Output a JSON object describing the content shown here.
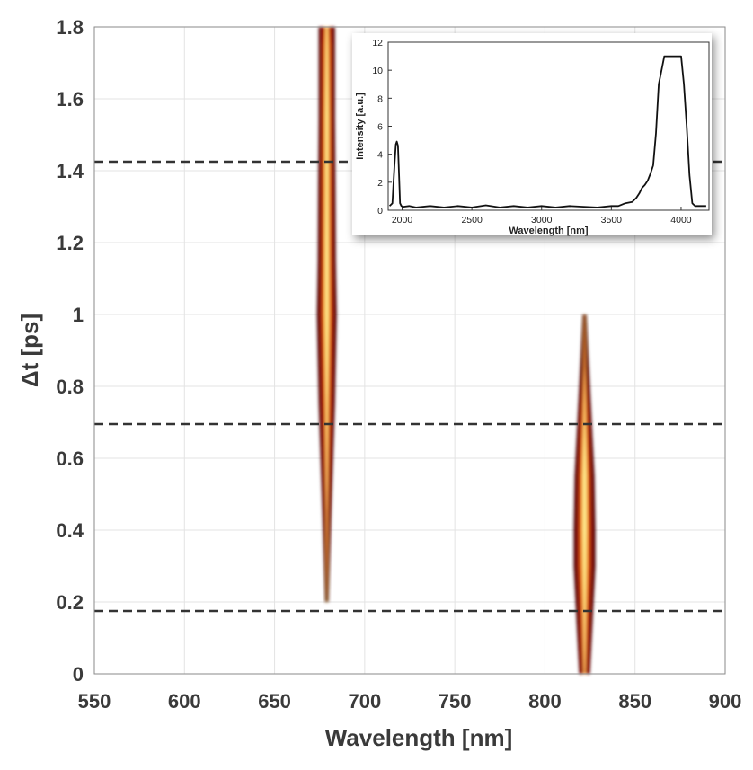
{
  "chart_data": [
    {
      "type": "heatmap",
      "xlabel": "Wavelength [nm]",
      "ylabel": "Δt  [ps]",
      "xlim": [
        550,
        900
      ],
      "ylim": [
        0,
        1.8
      ],
      "x_ticks": [
        "550",
        "600",
        "650",
        "700",
        "750",
        "800",
        "850",
        "900"
      ],
      "y_ticks": [
        "0",
        "0.2",
        "0.4",
        "0.6",
        "0.8",
        "1",
        "1.2",
        "1.4",
        "1.6",
        "1.8"
      ],
      "grid": true,
      "colormap": [
        "#3a0000",
        "#8b0a0a",
        "#d2380e",
        "#f59a1a",
        "#fff29a"
      ],
      "reference_lines": [
        1.425,
        0.695,
        0.175
      ],
      "reference_line_color": "#333333",
      "traces": [
        {
          "center_wavelength": 679,
          "dt_range": [
            0.2,
            1.8
          ],
          "profile": [
            {
              "dt": 0.2,
              "width": 1.0,
              "intensity": 0.05
            },
            {
              "dt": 0.45,
              "width": 2.5,
              "intensity": 0.25
            },
            {
              "dt": 0.75,
              "width": 4.5,
              "intensity": 0.5
            },
            {
              "dt": 1.0,
              "width": 5.5,
              "intensity": 0.85
            },
            {
              "dt": 1.15,
              "width": 5.0,
              "intensity": 1.0
            },
            {
              "dt": 1.35,
              "width": 4.8,
              "intensity": 0.8
            },
            {
              "dt": 1.55,
              "width": 4.5,
              "intensity": 1.0
            },
            {
              "dt": 1.75,
              "width": 4.5,
              "intensity": 0.55
            },
            {
              "dt": 1.8,
              "width": 4.5,
              "intensity": 0.4
            }
          ]
        },
        {
          "center_wavelength": 822,
          "dt_range": [
            0.0,
            1.0
          ],
          "profile": [
            {
              "dt": 0.0,
              "width": 3.0,
              "intensity": 0.3
            },
            {
              "dt": 0.15,
              "width": 4.5,
              "intensity": 0.5
            },
            {
              "dt": 0.3,
              "width": 6.0,
              "intensity": 0.75
            },
            {
              "dt": 0.4,
              "width": 6.0,
              "intensity": 1.0
            },
            {
              "dt": 0.55,
              "width": 5.5,
              "intensity": 1.0
            },
            {
              "dt": 0.7,
              "width": 4.0,
              "intensity": 0.5
            },
            {
              "dt": 0.85,
              "width": 2.5,
              "intensity": 0.2
            },
            {
              "dt": 1.0,
              "width": 1.0,
              "intensity": 0.05
            }
          ]
        }
      ]
    },
    {
      "type": "line",
      "xlabel": "Wavelength [nm]",
      "ylabel": "Intensity [a.u.]",
      "xlim": [
        1900,
        4200
      ],
      "ylim": [
        0,
        12
      ],
      "x_ticks": [
        "2000",
        "2500",
        "3000",
        "3500",
        "4000"
      ],
      "y_ticks": [
        "0",
        "2",
        "4",
        "6",
        "8",
        "10",
        "12"
      ],
      "series": [
        {
          "x": [
            1910,
            1930,
            1945,
            1955,
            1962,
            1970,
            1978,
            1985,
            1995,
            2010,
            2050,
            2100,
            2200,
            2300,
            2400,
            2500,
            2600,
            2700,
            2800,
            2900,
            3000,
            3100,
            3200,
            3300,
            3400,
            3500,
            3550,
            3600,
            3650,
            3680,
            3700,
            3720,
            3740,
            3760,
            3780,
            3800,
            3820,
            3840,
            3880,
            3950,
            4000,
            4020,
            4040,
            4060,
            4080,
            4100,
            4150,
            4180
          ],
          "y": [
            0.3,
            0.5,
            3.2,
            4.7,
            4.9,
            4.6,
            2.5,
            0.5,
            0.3,
            0.25,
            0.3,
            0.2,
            0.3,
            0.2,
            0.3,
            0.2,
            0.35,
            0.2,
            0.3,
            0.2,
            0.3,
            0.2,
            0.3,
            0.25,
            0.2,
            0.3,
            0.3,
            0.5,
            0.6,
            0.9,
            1.2,
            1.6,
            1.8,
            2.1,
            2.6,
            3.2,
            5.5,
            9.0,
            11.0,
            11.0,
            11.0,
            9.0,
            6.0,
            2.5,
            0.5,
            0.3,
            0.3,
            0.3
          ]
        }
      ]
    }
  ]
}
